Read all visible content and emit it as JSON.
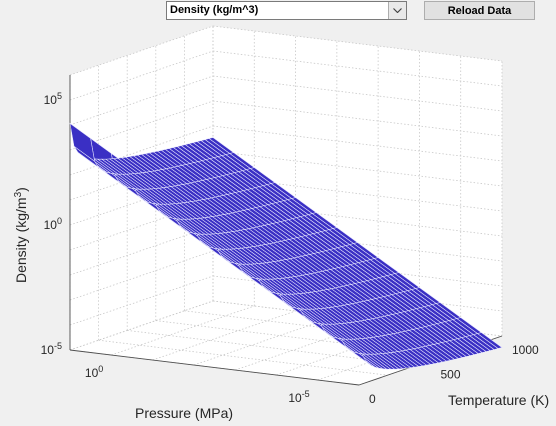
{
  "toolbar": {
    "quantity_select": {
      "value": "Density (kg/m^3)",
      "icon": "chevron-down-icon"
    },
    "reload_label": "Reload Data"
  },
  "chart_data": {
    "type": "surface",
    "title": "",
    "xlabel": "Pressure (MPa)",
    "ylabel": "Temperature (K)",
    "zlabel_main": "Density (kg/m",
    "zlabel_sup": "3",
    "zlabel_end": ")",
    "x_scale": "log",
    "z_scale": "log",
    "grid": true,
    "surface_color": "#3a2fc4",
    "surface_edge_color": "#e8e8ff",
    "x_ticks": [
      {
        "base": "10",
        "exp": "0",
        "value": 1
      },
      {
        "base": "10",
        "exp": "-5",
        "value": 1e-05
      }
    ],
    "y_ticks": [
      "0",
      "500",
      "1000"
    ],
    "z_ticks": [
      {
        "base": "10",
        "exp": "5",
        "value": 100000
      },
      {
        "base": "10",
        "exp": "0",
        "value": 1
      },
      {
        "base": "10",
        "exp": "-5",
        "value": 1e-05
      }
    ],
    "xlim": [
      1e-06,
      10
    ],
    "ylim": [
      0,
      1000
    ],
    "zlim": [
      1e-05,
      1000000
    ]
  }
}
